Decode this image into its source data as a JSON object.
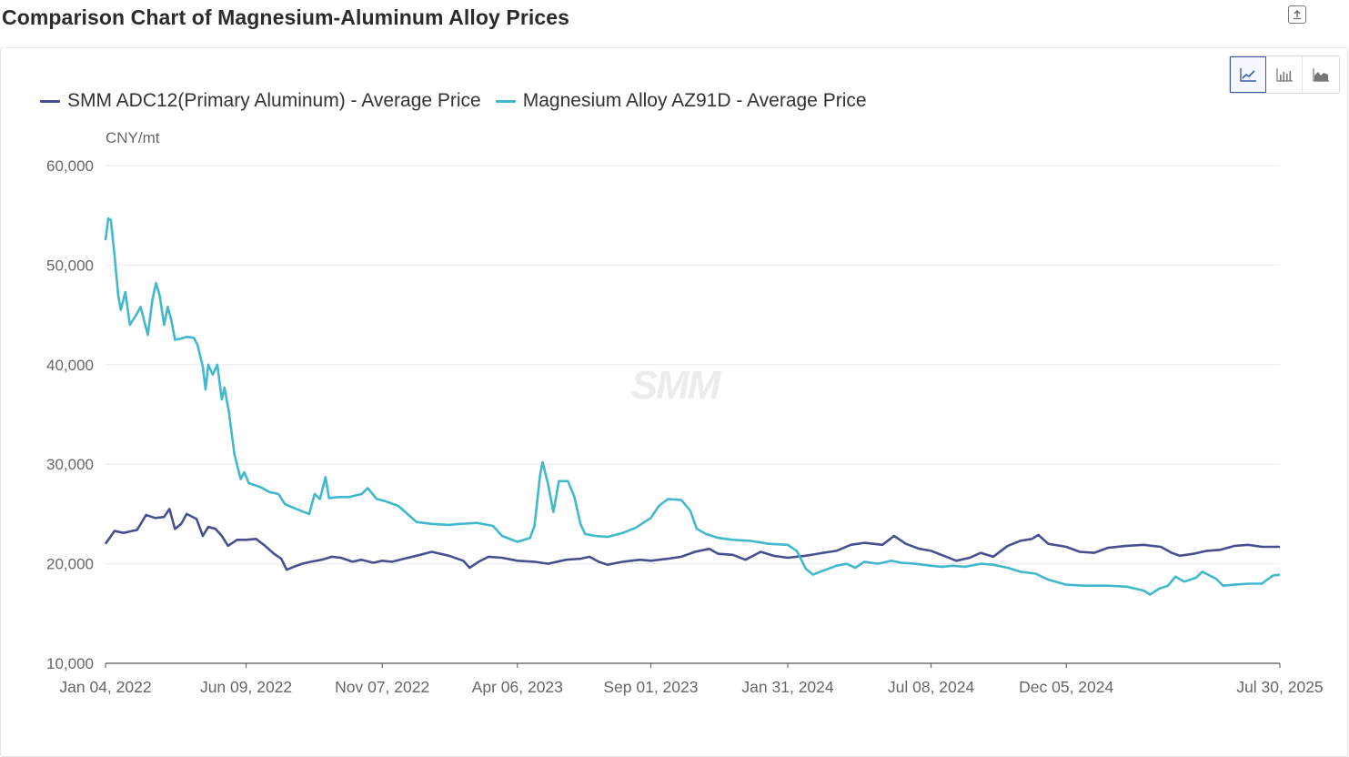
{
  "page": {
    "title": "Comparison Chart of Magnesium-Aluminum Alloy Prices",
    "export_icon": "export-icon"
  },
  "toolbar": {
    "buttons": [
      {
        "icon": "line-chart-icon",
        "active": true
      },
      {
        "icon": "bar-chart-icon",
        "active": false
      },
      {
        "icon": "area-chart-icon",
        "active": false
      }
    ]
  },
  "watermark": "SMM",
  "colors": {
    "aluminum": "#47508f",
    "magnesium": "#41b8cc",
    "grid": "#e9e9f0",
    "axis": "#555555",
    "active": "#3a5aa8"
  },
  "chart_data": {
    "type": "line",
    "title": "Comparison Chart of Magnesium-Aluminum Alloy Prices",
    "ylabel": "CNY/mt",
    "ylim": [
      10000,
      60000
    ],
    "yticks": [
      10000,
      20000,
      30000,
      40000,
      50000,
      60000
    ],
    "ytick_labels": [
      "10,000",
      "20,000",
      "30,000",
      "40,000",
      "50,000",
      "60,000"
    ],
    "xlim": [
      "2022-01-04",
      "2025-07-30"
    ],
    "xticks": [
      "2022-01-04",
      "2022-06-09",
      "2022-11-07",
      "2023-04-06",
      "2023-09-01",
      "2024-01-31",
      "2024-07-08",
      "2024-12-05",
      "2025-07-30"
    ],
    "xtick_labels": [
      "Jan 04, 2022",
      "Jun 09, 2022",
      "Nov 07, 2022",
      "Apr 06, 2023",
      "Sep 01, 2023",
      "Jan 31, 2024",
      "Jul 08, 2024",
      "Dec 05, 2024",
      "Jul 30, 2025"
    ],
    "grid": true,
    "legend_position": "top-left",
    "series": [
      {
        "name": "SMM ADC12(Primary Aluminum) - Average Price",
        "color": "#47508f",
        "points": [
          [
            "2022-01-04",
            22000
          ],
          [
            "2022-01-14",
            23300
          ],
          [
            "2022-01-24",
            23100
          ],
          [
            "2022-02-08",
            23400
          ],
          [
            "2022-02-18",
            24900
          ],
          [
            "2022-02-28",
            24600
          ],
          [
            "2022-03-10",
            24700
          ],
          [
            "2022-03-16",
            25500
          ],
          [
            "2022-03-22",
            23500
          ],
          [
            "2022-03-29",
            24000
          ],
          [
            "2022-04-04",
            25000
          ],
          [
            "2022-04-15",
            24500
          ],
          [
            "2022-04-22",
            22800
          ],
          [
            "2022-04-28",
            23700
          ],
          [
            "2022-05-06",
            23500
          ],
          [
            "2022-05-13",
            22800
          ],
          [
            "2022-05-20",
            21800
          ],
          [
            "2022-05-30",
            22400
          ],
          [
            "2022-06-09",
            22400
          ],
          [
            "2022-06-20",
            22500
          ],
          [
            "2022-06-30",
            21800
          ],
          [
            "2022-07-10",
            21000
          ],
          [
            "2022-07-18",
            20500
          ],
          [
            "2022-07-24",
            19400
          ],
          [
            "2022-08-01",
            19700
          ],
          [
            "2022-08-10",
            20000
          ],
          [
            "2022-08-20",
            20200
          ],
          [
            "2022-09-01",
            20400
          ],
          [
            "2022-09-12",
            20700
          ],
          [
            "2022-09-22",
            20600
          ],
          [
            "2022-10-05",
            20200
          ],
          [
            "2022-10-15",
            20400
          ],
          [
            "2022-10-28",
            20100
          ],
          [
            "2022-11-07",
            20300
          ],
          [
            "2022-11-18",
            20200
          ],
          [
            "2022-12-01",
            20500
          ],
          [
            "2022-12-15",
            20800
          ],
          [
            "2023-01-01",
            21200
          ],
          [
            "2023-01-20",
            20800
          ],
          [
            "2023-02-05",
            20300
          ],
          [
            "2023-02-12",
            19600
          ],
          [
            "2023-02-22",
            20200
          ],
          [
            "2023-03-05",
            20700
          ],
          [
            "2023-03-20",
            20600
          ],
          [
            "2023-04-06",
            20300
          ],
          [
            "2023-04-25",
            20200
          ],
          [
            "2023-05-10",
            20000
          ],
          [
            "2023-05-30",
            20400
          ],
          [
            "2023-06-15",
            20500
          ],
          [
            "2023-06-25",
            20700
          ],
          [
            "2023-07-05",
            20200
          ],
          [
            "2023-07-15",
            19900
          ],
          [
            "2023-08-01",
            20200
          ],
          [
            "2023-08-20",
            20400
          ],
          [
            "2023-09-01",
            20300
          ],
          [
            "2023-09-20",
            20500
          ],
          [
            "2023-10-05",
            20700
          ],
          [
            "2023-10-20",
            21200
          ],
          [
            "2023-11-05",
            21500
          ],
          [
            "2023-11-15",
            21000
          ],
          [
            "2023-12-01",
            20900
          ],
          [
            "2023-12-15",
            20400
          ],
          [
            "2024-01-01",
            21200
          ],
          [
            "2024-01-15",
            20800
          ],
          [
            "2024-01-31",
            20600
          ],
          [
            "2024-02-20",
            20800
          ],
          [
            "2024-03-10",
            21100
          ],
          [
            "2024-03-25",
            21300
          ],
          [
            "2024-04-10",
            21900
          ],
          [
            "2024-04-25",
            22100
          ],
          [
            "2024-05-15",
            21900
          ],
          [
            "2024-05-28",
            22800
          ],
          [
            "2024-06-10",
            22000
          ],
          [
            "2024-06-25",
            21500
          ],
          [
            "2024-07-08",
            21300
          ],
          [
            "2024-07-22",
            20800
          ],
          [
            "2024-08-05",
            20300
          ],
          [
            "2024-08-20",
            20600
          ],
          [
            "2024-09-01",
            21100
          ],
          [
            "2024-09-15",
            20700
          ],
          [
            "2024-10-01",
            21800
          ],
          [
            "2024-10-15",
            22300
          ],
          [
            "2024-10-28",
            22500
          ],
          [
            "2024-11-04",
            22900
          ],
          [
            "2024-11-15",
            22000
          ],
          [
            "2024-12-05",
            21700
          ],
          [
            "2024-12-20",
            21200
          ],
          [
            "2025-01-05",
            21100
          ],
          [
            "2025-01-20",
            21600
          ],
          [
            "2025-02-10",
            21800
          ],
          [
            "2025-03-01",
            21900
          ],
          [
            "2025-03-20",
            21700
          ],
          [
            "2025-04-01",
            21100
          ],
          [
            "2025-04-10",
            20800
          ],
          [
            "2025-04-25",
            21000
          ],
          [
            "2025-05-10",
            21300
          ],
          [
            "2025-05-25",
            21400
          ],
          [
            "2025-06-10",
            21800
          ],
          [
            "2025-06-25",
            21900
          ],
          [
            "2025-07-10",
            21700
          ],
          [
            "2025-07-30",
            21700
          ]
        ]
      },
      {
        "name": "Magnesium Alloy AZ91D - Average Price",
        "color": "#41b8cc",
        "points": [
          [
            "2022-01-04",
            52500
          ],
          [
            "2022-01-07",
            54700
          ],
          [
            "2022-01-10",
            54500
          ],
          [
            "2022-01-14",
            51000
          ],
          [
            "2022-01-18",
            47000
          ],
          [
            "2022-01-21",
            45500
          ],
          [
            "2022-01-26",
            47300
          ],
          [
            "2022-01-31",
            44000
          ],
          [
            "2022-02-07",
            45000
          ],
          [
            "2022-02-12",
            45800
          ],
          [
            "2022-02-17",
            44000
          ],
          [
            "2022-02-20",
            43000
          ],
          [
            "2022-02-25",
            46500
          ],
          [
            "2022-03-01",
            48200
          ],
          [
            "2022-03-05",
            47000
          ],
          [
            "2022-03-10",
            44000
          ],
          [
            "2022-03-14",
            45800
          ],
          [
            "2022-03-18",
            44500
          ],
          [
            "2022-03-22",
            42500
          ],
          [
            "2022-03-28",
            42600
          ],
          [
            "2022-04-04",
            42800
          ],
          [
            "2022-04-12",
            42700
          ],
          [
            "2022-04-16",
            42000
          ],
          [
            "2022-04-22",
            39800
          ],
          [
            "2022-04-25",
            37500
          ],
          [
            "2022-04-28",
            40000
          ],
          [
            "2022-05-03",
            39000
          ],
          [
            "2022-05-08",
            40000
          ],
          [
            "2022-05-13",
            36500
          ],
          [
            "2022-05-16",
            37700
          ],
          [
            "2022-05-21",
            35200
          ],
          [
            "2022-05-27",
            31000
          ],
          [
            "2022-06-03",
            28500
          ],
          [
            "2022-06-07",
            29200
          ],
          [
            "2022-06-12",
            28100
          ],
          [
            "2022-06-25",
            27700
          ],
          [
            "2022-07-05",
            27200
          ],
          [
            "2022-07-15",
            27000
          ],
          [
            "2022-07-22",
            26000
          ],
          [
            "2022-08-01",
            25600
          ],
          [
            "2022-08-12",
            25200
          ],
          [
            "2022-08-18",
            25000
          ],
          [
            "2022-08-24",
            27000
          ],
          [
            "2022-08-30",
            26500
          ],
          [
            "2022-09-05",
            28700
          ],
          [
            "2022-09-09",
            26600
          ],
          [
            "2022-09-20",
            26700
          ],
          [
            "2022-10-01",
            26700
          ],
          [
            "2022-10-15",
            27000
          ],
          [
            "2022-10-22",
            27600
          ],
          [
            "2022-11-01",
            26500
          ],
          [
            "2022-11-10",
            26300
          ],
          [
            "2022-11-25",
            25800
          ],
          [
            "2022-12-05",
            25000
          ],
          [
            "2022-12-15",
            24200
          ],
          [
            "2023-01-01",
            24000
          ],
          [
            "2023-01-20",
            23900
          ],
          [
            "2023-02-01",
            24000
          ],
          [
            "2023-02-20",
            24100
          ],
          [
            "2023-03-10",
            23800
          ],
          [
            "2023-03-20",
            22800
          ],
          [
            "2023-04-06",
            22200
          ],
          [
            "2023-04-20",
            22600
          ],
          [
            "2023-04-25",
            23800
          ],
          [
            "2023-05-01",
            28800
          ],
          [
            "2023-05-04",
            30200
          ],
          [
            "2023-05-10",
            28000
          ],
          [
            "2023-05-16",
            25200
          ],
          [
            "2023-05-22",
            28300
          ],
          [
            "2023-06-01",
            28300
          ],
          [
            "2023-06-08",
            26800
          ],
          [
            "2023-06-15",
            24000
          ],
          [
            "2023-06-20",
            23000
          ],
          [
            "2023-07-01",
            22800
          ],
          [
            "2023-07-15",
            22700
          ],
          [
            "2023-08-01",
            23100
          ],
          [
            "2023-08-15",
            23600
          ],
          [
            "2023-09-01",
            24600
          ],
          [
            "2023-09-10",
            25800
          ],
          [
            "2023-09-20",
            26500
          ],
          [
            "2023-10-05",
            26400
          ],
          [
            "2023-10-15",
            25300
          ],
          [
            "2023-10-22",
            23500
          ],
          [
            "2023-11-01",
            23000
          ],
          [
            "2023-11-15",
            22600
          ],
          [
            "2023-12-01",
            22400
          ],
          [
            "2023-12-20",
            22300
          ],
          [
            "2024-01-10",
            22000
          ],
          [
            "2024-01-31",
            21900
          ],
          [
            "2024-02-10",
            21300
          ],
          [
            "2024-02-20",
            19500
          ],
          [
            "2024-02-28",
            18900
          ],
          [
            "2024-03-10",
            19300
          ],
          [
            "2024-03-25",
            19800
          ],
          [
            "2024-04-05",
            20000
          ],
          [
            "2024-04-15",
            19600
          ],
          [
            "2024-04-25",
            20200
          ],
          [
            "2024-05-10",
            20000
          ],
          [
            "2024-05-25",
            20300
          ],
          [
            "2024-06-05",
            20100
          ],
          [
            "2024-06-20",
            20000
          ],
          [
            "2024-07-08",
            19800
          ],
          [
            "2024-07-20",
            19700
          ],
          [
            "2024-08-01",
            19800
          ],
          [
            "2024-08-15",
            19700
          ],
          [
            "2024-09-01",
            20000
          ],
          [
            "2024-09-15",
            19900
          ],
          [
            "2024-10-01",
            19600
          ],
          [
            "2024-10-15",
            19200
          ],
          [
            "2024-11-01",
            19000
          ],
          [
            "2024-11-15",
            18400
          ],
          [
            "2024-12-05",
            17900
          ],
          [
            "2024-12-25",
            17800
          ],
          [
            "2025-01-20",
            17800
          ],
          [
            "2025-02-10",
            17700
          ],
          [
            "2025-03-01",
            17300
          ],
          [
            "2025-03-08",
            16900
          ],
          [
            "2025-03-18",
            17500
          ],
          [
            "2025-03-28",
            17800
          ],
          [
            "2025-04-05",
            18700
          ],
          [
            "2025-04-15",
            18200
          ],
          [
            "2025-04-28",
            18600
          ],
          [
            "2025-05-05",
            19200
          ],
          [
            "2025-05-20",
            18500
          ],
          [
            "2025-05-28",
            17800
          ],
          [
            "2025-06-10",
            17900
          ],
          [
            "2025-06-25",
            18000
          ],
          [
            "2025-07-10",
            18000
          ],
          [
            "2025-07-22",
            18800
          ],
          [
            "2025-07-30",
            18900
          ]
        ]
      }
    ]
  }
}
